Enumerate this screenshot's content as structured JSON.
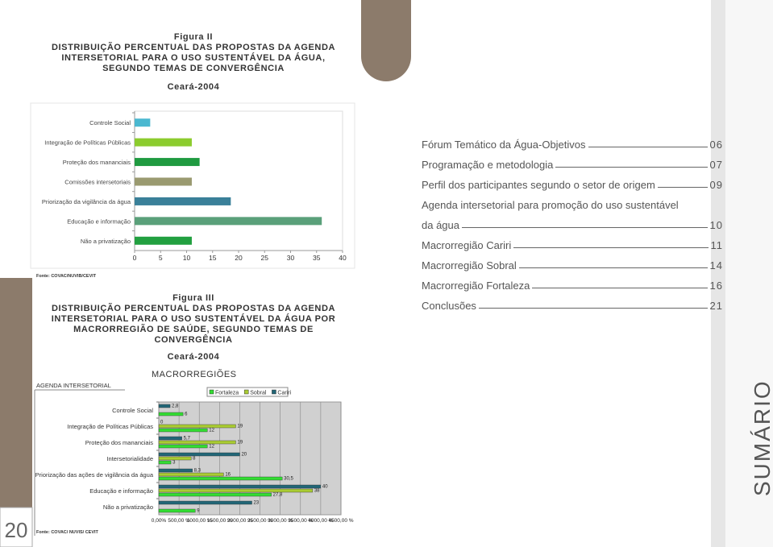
{
  "chart_data": [
    {
      "type": "hbar",
      "title": "Figura II",
      "subtitle": [
        "DISTRIBUIÇÃO PERCENTUAL DAS PROPOSTAS DA AGENDA",
        "INTERSETORIAL PARA O USO SUSTENTÁVEL DA ÁGUA,",
        "SEGUNDO TEMAS DE CONVERGÊNCIA"
      ],
      "date": "Ceará-2004",
      "categories": [
        "Controle Social",
        "Integração de Políticas Públicas",
        "Proteção dos mananciais",
        "Comissões intersetoriais",
        "Priorização da vigilância da água",
        "Educação e informação",
        "Não a privatização"
      ],
      "values": [
        3,
        11,
        12.5,
        11,
        18.5,
        36,
        11
      ],
      "colors": [
        "#4bb8d0",
        "#8ccc2e",
        "#1f9a40",
        "#9a9a70",
        "#3a8099",
        "#5aa07a",
        "#22a040"
      ],
      "xlim": [
        0,
        40
      ],
      "xticks": [
        0,
        5,
        10,
        15,
        20,
        25,
        30,
        35,
        40
      ],
      "source": "Fonte: COVAC/NUVIB/CEVIT"
    },
    {
      "type": "grouped-hbar",
      "title": "Figura III",
      "subtitle": [
        "DISTRIBUIÇÃO PERCENTUAL DAS PROPOSTAS DA AGENDA",
        "INTERSETORIAL PARA O USO SUSTENTÁVEL DA ÁGUA POR",
        "MACRORREGIÃO DE SAÚDE, SEGUNDO TEMAS DE",
        "CONVERGÊNCIA"
      ],
      "date": "Ceará-2004",
      "y_axis_title": "AGENDA INTERSETORIAL",
      "legend_title": "MACRORREGIÕES",
      "categories": [
        "Controle Social",
        "Integração de Políticas Públicas",
        "Proteção dos mananciais",
        "Intersetorialidade",
        "Priorização das ações de vigilância da água",
        "Educação e informação",
        "Não a privatização"
      ],
      "series": [
        {
          "name": "Fortaleza",
          "color": "#33dd33",
          "values": [
            600,
            1200,
            1200,
            300,
            3050,
            2780,
            900
          ],
          "value_labels": [
            "6",
            "12",
            "12",
            "3",
            "30,5",
            "27,8",
            "9"
          ]
        },
        {
          "name": "Sobral",
          "color": "#aacc33",
          "values": [
            null,
            1900,
            1900,
            800,
            1600,
            3800,
            null
          ],
          "value_labels": [
            null,
            "19",
            "19",
            "8",
            "16",
            "38",
            null
          ]
        },
        {
          "name": "Cariri",
          "color": "#226677",
          "values": [
            280,
            0,
            570,
            2000,
            830,
            4000,
            2300
          ],
          "value_labels": [
            "2,8",
            "0",
            "5,7",
            "20",
            "8,3",
            "40",
            "23"
          ]
        }
      ],
      "xlim": [
        0,
        4500
      ],
      "xticks": [
        {
          "value": 0,
          "label": "0,00%"
        },
        {
          "value": 500,
          "label": "500,00 %"
        },
        {
          "value": 1000,
          "label": "1000,00 %"
        },
        {
          "value": 1500,
          "label": "1500,00 %"
        },
        {
          "value": 2000,
          "label": "2000,00 %"
        },
        {
          "value": 2500,
          "label": "2500,00 %"
        },
        {
          "value": 3000,
          "label": "3000,00 %"
        },
        {
          "value": 3500,
          "label": "3500,00 %"
        },
        {
          "value": 4000,
          "label": "4000,00 %"
        },
        {
          "value": 4500,
          "label": "4500,00 %"
        }
      ],
      "grid": true,
      "source": "Fonte: COVAC/ NUVIS/ CEVIT"
    }
  ],
  "toc": [
    {
      "title": "Fórum Temático da Água-Objetivos",
      "page": "06"
    },
    {
      "title": "Programação e metodologia",
      "page": "07"
    },
    {
      "title": "Perfil dos participantes segundo o setor de origem",
      "page": "09"
    },
    {
      "title": "Agenda intersetorial para promoção do uso sustentável",
      "continuation": "da água",
      "page": "10"
    },
    {
      "title": "Macrorregião Cariri",
      "page": "11"
    },
    {
      "title": "Macrorregião Sobral",
      "page": "14"
    },
    {
      "title": "Macrorregião Fortaleza",
      "page": "16"
    },
    {
      "title": "Conclusões",
      "page": "21"
    }
  ],
  "section_title": "SUMÁRIO",
  "page_number": "20"
}
